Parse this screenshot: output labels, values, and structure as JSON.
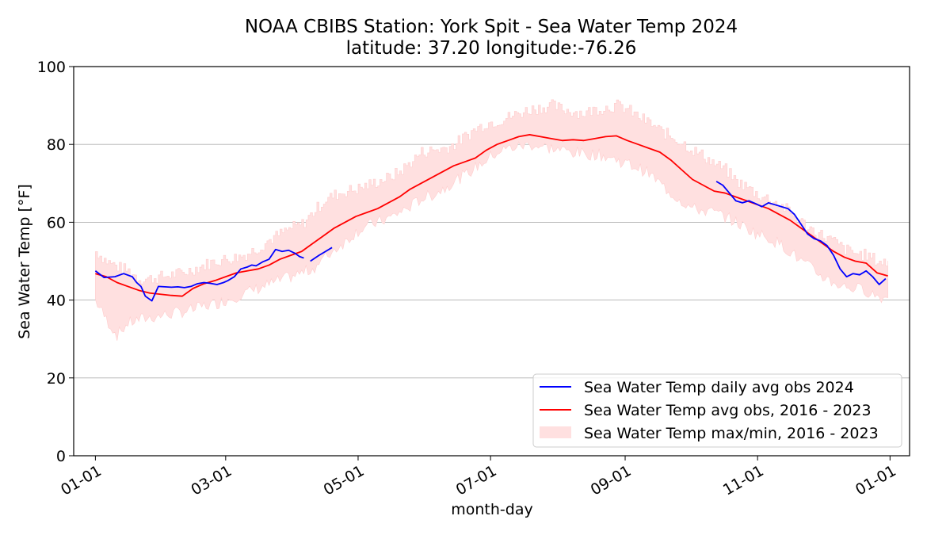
{
  "chart_data": {
    "type": "line",
    "title": "NOAA CBIBS Station: York Spit - Sea Water Temp 2024",
    "subtitle": "latitude: 37.20 longitude:-76.26",
    "xlabel": "month-day",
    "ylabel": "Sea Water Temp [°F]",
    "ylim": [
      0,
      100
    ],
    "xlim": [
      "2023-12-22",
      "2025-01-10"
    ],
    "x_ticks": [
      "01-01",
      "03-01",
      "05-01",
      "07-01",
      "09-01",
      "11-01",
      "01-01"
    ],
    "x_tick_dates": [
      "2024-01-01",
      "2024-03-01",
      "2024-05-01",
      "2024-07-01",
      "2024-09-01",
      "2024-11-01",
      "2025-01-01"
    ],
    "y_ticks": [
      0,
      20,
      40,
      60,
      80,
      100
    ],
    "grid": "horizontal",
    "legend_position": "lower-right",
    "series": [
      {
        "name": "Sea Water Temp daily avg obs 2024",
        "color": "#0000ff",
        "kind": "line",
        "segments": [
          {
            "x": [
              "2024-01-01",
              "2024-01-05",
              "2024-01-10",
              "2024-01-14",
              "2024-01-18",
              "2024-01-20",
              "2024-01-22",
              "2024-01-24",
              "2024-01-27",
              "2024-01-30",
              "2024-02-02",
              "2024-02-05",
              "2024-02-08",
              "2024-02-11",
              "2024-02-14",
              "2024-02-17",
              "2024-02-20",
              "2024-02-23",
              "2024-02-26",
              "2024-02-29",
              "2024-03-02",
              "2024-03-05",
              "2024-03-08",
              "2024-03-11",
              "2024-03-13",
              "2024-03-15",
              "2024-03-18",
              "2024-03-21",
              "2024-03-24",
              "2024-03-27",
              "2024-03-30",
              "2024-04-02",
              "2024-04-04",
              "2024-04-06"
            ],
            "y": [
              47.5,
              45.8,
              46.0,
              46.8,
              46.0,
              44.5,
              43.5,
              41.0,
              39.8,
              43.5,
              43.4,
              43.3,
              43.4,
              43.2,
              43.5,
              44.2,
              44.5,
              44.3,
              44.0,
              44.5,
              45.0,
              46.0,
              48.0,
              48.5,
              49.0,
              48.8,
              49.8,
              50.5,
              53.0,
              52.5,
              52.8,
              52.0,
              51.2,
              50.8
            ]
          },
          {
            "x": [
              "2024-04-09",
              "2024-04-13",
              "2024-04-16",
              "2024-04-19"
            ],
            "y": [
              50.0,
              51.5,
              52.5,
              53.5
            ]
          },
          {
            "x": [
              "2024-10-13",
              "2024-10-16",
              "2024-10-19",
              "2024-10-22",
              "2024-10-25",
              "2024-10-28",
              "2024-10-31",
              "2024-11-03",
              "2024-11-06",
              "2024-11-09",
              "2024-11-12",
              "2024-11-15",
              "2024-11-18",
              "2024-11-21",
              "2024-11-24",
              "2024-11-27",
              "2024-11-30",
              "2024-12-03",
              "2024-12-06",
              "2024-12-09",
              "2024-12-12",
              "2024-12-15",
              "2024-12-18",
              "2024-12-21",
              "2024-12-24",
              "2024-12-27",
              "2024-12-30"
            ],
            "y": [
              70.5,
              69.5,
              67.5,
              65.5,
              65.0,
              65.5,
              64.8,
              64.0,
              65.0,
              64.5,
              64.0,
              63.5,
              62.0,
              59.5,
              57.0,
              55.8,
              55.2,
              54.0,
              51.5,
              48.0,
              46.0,
              46.8,
              46.5,
              47.5,
              46.0,
              44.0,
              45.5
            ]
          }
        ]
      },
      {
        "name": "Sea Water Temp avg obs, 2016 - 2023",
        "color": "#ff0000",
        "kind": "line",
        "segments": [
          {
            "x": [
              "2024-01-01",
              "2024-01-06",
              "2024-01-11",
              "2024-01-16",
              "2024-01-21",
              "2024-01-26",
              "2024-01-31",
              "2024-02-05",
              "2024-02-10",
              "2024-02-15",
              "2024-02-20",
              "2024-02-25",
              "2024-03-01",
              "2024-03-06",
              "2024-03-11",
              "2024-03-16",
              "2024-03-21",
              "2024-03-26",
              "2024-03-31",
              "2024-04-05",
              "2024-04-10",
              "2024-04-15",
              "2024-04-20",
              "2024-04-25",
              "2024-04-30",
              "2024-05-05",
              "2024-05-10",
              "2024-05-15",
              "2024-05-20",
              "2024-05-25",
              "2024-05-30",
              "2024-06-04",
              "2024-06-09",
              "2024-06-14",
              "2024-06-19",
              "2024-06-24",
              "2024-06-29",
              "2024-07-04",
              "2024-07-09",
              "2024-07-14",
              "2024-07-19",
              "2024-07-24",
              "2024-07-29",
              "2024-08-03",
              "2024-08-08",
              "2024-08-13",
              "2024-08-18",
              "2024-08-23",
              "2024-08-28",
              "2024-09-02",
              "2024-09-07",
              "2024-09-12",
              "2024-09-17",
              "2024-09-22",
              "2024-09-27",
              "2024-10-02",
              "2024-10-07",
              "2024-10-12",
              "2024-10-17",
              "2024-10-22",
              "2024-10-27",
              "2024-11-01",
              "2024-11-06",
              "2024-11-11",
              "2024-11-16",
              "2024-11-21",
              "2024-11-26",
              "2024-12-01",
              "2024-12-06",
              "2024-12-11",
              "2024-12-16",
              "2024-12-21",
              "2024-12-26",
              "2024-12-31"
            ],
            "y": [
              46.8,
              46.0,
              44.5,
              43.5,
              42.5,
              41.8,
              41.5,
              41.2,
              41.0,
              43.0,
              44.2,
              45.0,
              46.0,
              47.0,
              47.5,
              48.0,
              49.0,
              50.5,
              51.5,
              52.5,
              54.5,
              56.5,
              58.5,
              60.0,
              61.5,
              62.5,
              63.5,
              65.0,
              66.5,
              68.5,
              70.0,
              71.5,
              73.0,
              74.5,
              75.5,
              76.5,
              78.5,
              80.0,
              81.0,
              82.0,
              82.5,
              82.0,
              81.5,
              81.0,
              81.2,
              81.0,
              81.5,
              82.0,
              82.2,
              81.0,
              80.0,
              79.0,
              78.0,
              76.0,
              73.5,
              71.0,
              69.5,
              68.0,
              67.5,
              66.5,
              65.5,
              64.5,
              63.5,
              62.0,
              60.5,
              58.5,
              56.5,
              54.5,
              52.5,
              51.0,
              50.0,
              49.5,
              47.0,
              46.2
            ]
          }
        ]
      },
      {
        "name": "Sea Water Temp max/min, 2016 - 2023",
        "color": "#ffe0e0",
        "kind": "band",
        "x": [
          "2024-01-01",
          "2024-01-06",
          "2024-01-11",
          "2024-01-16",
          "2024-01-21",
          "2024-01-26",
          "2024-01-31",
          "2024-02-05",
          "2024-02-10",
          "2024-02-15",
          "2024-02-20",
          "2024-02-25",
          "2024-03-01",
          "2024-03-06",
          "2024-03-11",
          "2024-03-16",
          "2024-03-21",
          "2024-03-26",
          "2024-03-31",
          "2024-04-05",
          "2024-04-10",
          "2024-04-15",
          "2024-04-20",
          "2024-04-25",
          "2024-04-30",
          "2024-05-05",
          "2024-05-10",
          "2024-05-15",
          "2024-05-20",
          "2024-05-25",
          "2024-05-30",
          "2024-06-04",
          "2024-06-09",
          "2024-06-14",
          "2024-06-19",
          "2024-06-24",
          "2024-06-29",
          "2024-07-04",
          "2024-07-09",
          "2024-07-14",
          "2024-07-19",
          "2024-07-24",
          "2024-07-29",
          "2024-08-03",
          "2024-08-08",
          "2024-08-13",
          "2024-08-18",
          "2024-08-23",
          "2024-08-28",
          "2024-09-02",
          "2024-09-07",
          "2024-09-12",
          "2024-09-17",
          "2024-09-22",
          "2024-09-27",
          "2024-10-02",
          "2024-10-07",
          "2024-10-12",
          "2024-10-17",
          "2024-10-22",
          "2024-10-27",
          "2024-11-01",
          "2024-11-06",
          "2024-11-11",
          "2024-11-16",
          "2024-11-21",
          "2024-11-26",
          "2024-12-01",
          "2024-12-06",
          "2024-12-11",
          "2024-12-16",
          "2024-12-21",
          "2024-12-26",
          "2024-12-31"
        ],
        "y_max": [
          52.5,
          50.0,
          48.5,
          47.5,
          45.5,
          45.5,
          46.0,
          46.5,
          47.0,
          48.0,
          49.0,
          50.0,
          50.5,
          51.0,
          52.0,
          53.5,
          55.5,
          57.0,
          58.5,
          59.5,
          62.5,
          65.5,
          67.0,
          68.0,
          68.5,
          69.5,
          70.5,
          71.5,
          73.0,
          75.5,
          78.0,
          78.5,
          79.0,
          80.0,
          82.0,
          84.0,
          85.5,
          86.0,
          87.0,
          88.0,
          89.0,
          89.5,
          90.0,
          89.0,
          88.5,
          88.0,
          89.0,
          89.5,
          90.0,
          89.0,
          87.0,
          85.5,
          83.5,
          82.0,
          80.5,
          78.5,
          77.0,
          75.0,
          73.5,
          70.5,
          69.0,
          67.0,
          66.0,
          64.5,
          62.5,
          60.0,
          58.0,
          56.5,
          55.0,
          53.0,
          52.0,
          51.5,
          50.0,
          49.5
        ],
        "y_min": [
          40.0,
          35.0,
          31.0,
          34.0,
          35.0,
          35.5,
          36.0,
          36.5,
          37.0,
          37.5,
          38.5,
          39.0,
          40.0,
          41.0,
          42.0,
          43.0,
          44.0,
          45.0,
          46.0,
          47.0,
          48.0,
          50.5,
          53.0,
          55.0,
          57.5,
          59.0,
          60.0,
          61.0,
          62.5,
          64.0,
          66.0,
          67.0,
          68.5,
          70.5,
          72.0,
          74.0,
          76.0,
          78.0,
          79.0,
          79.5,
          80.0,
          79.5,
          79.0,
          78.5,
          78.0,
          77.5,
          77.5,
          77.0,
          76.0,
          75.0,
          74.0,
          72.5,
          70.0,
          67.5,
          65.5,
          63.5,
          63.0,
          62.5,
          61.5,
          60.0,
          58.5,
          57.0,
          56.0,
          54.5,
          52.5,
          50.0,
          48.0,
          46.0,
          44.5,
          43.5,
          43.0,
          42.5,
          41.0,
          40.5
        ]
      }
    ]
  }
}
